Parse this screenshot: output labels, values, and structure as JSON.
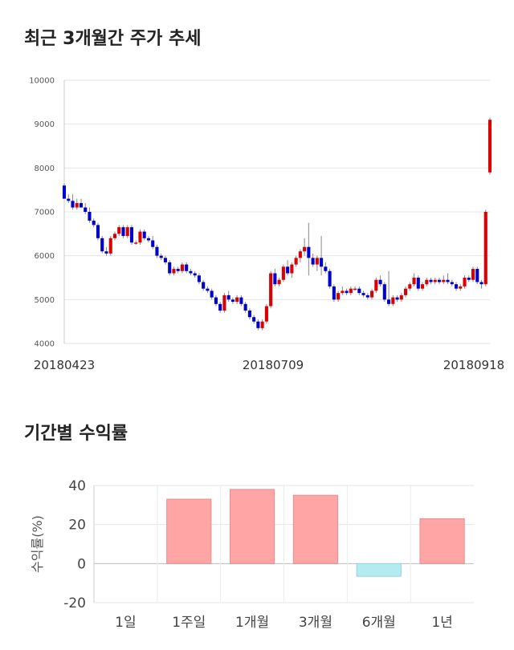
{
  "titles": {
    "price": "최근 3개월간 주가 추세",
    "returns": "기간별 수익률"
  },
  "chart_data": [
    {
      "type": "candlestick",
      "y_ticks": [
        4000,
        5000,
        6000,
        7000,
        8000,
        9000,
        10000
      ],
      "ylim": [
        4000,
        10000
      ],
      "x_labels": [
        "20180423",
        "20180709",
        "20180918"
      ],
      "grid": true,
      "colors": {
        "up": "#dd0000",
        "down": "#0000cc"
      },
      "candles": [
        [
          7600,
          7650,
          7300,
          7300
        ],
        [
          7300,
          7400,
          7200,
          7250
        ],
        [
          7250,
          7400,
          7050,
          7100
        ],
        [
          7100,
          7300,
          7050,
          7200
        ],
        [
          7200,
          7300,
          7100,
          7100
        ],
        [
          7100,
          7200,
          6950,
          7000
        ],
        [
          7000,
          7100,
          6750,
          6800
        ],
        [
          6800,
          6850,
          6650,
          6700
        ],
        [
          6700,
          6750,
          6350,
          6400
        ],
        [
          6400,
          6450,
          6050,
          6100
        ],
        [
          6100,
          6200,
          6000,
          6050
        ],
        [
          6050,
          6450,
          6000,
          6400
        ],
        [
          6400,
          6550,
          6350,
          6500
        ],
        [
          6500,
          6700,
          6450,
          6650
        ],
        [
          6650,
          6700,
          6400,
          6450
        ],
        [
          6450,
          6700,
          6400,
          6650
        ],
        [
          6650,
          6700,
          6250,
          6300
        ],
        [
          6300,
          6350,
          6250,
          6300
        ],
        [
          6300,
          6600,
          6250,
          6550
        ],
        [
          6550,
          6600,
          6350,
          6400
        ],
        [
          6400,
          6450,
          6300,
          6350
        ],
        [
          6350,
          6450,
          6150,
          6200
        ],
        [
          6200,
          6250,
          5950,
          6000
        ],
        [
          6000,
          6050,
          5900,
          5950
        ],
        [
          5950,
          6000,
          5800,
          5850
        ],
        [
          5850,
          5900,
          5550,
          5600
        ],
        [
          5600,
          5750,
          5550,
          5700
        ],
        [
          5700,
          5750,
          5600,
          5650
        ],
        [
          5650,
          5850,
          5600,
          5800
        ],
        [
          5800,
          5850,
          5600,
          5650
        ],
        [
          5650,
          5700,
          5550,
          5600
        ],
        [
          5600,
          5650,
          5500,
          5550
        ],
        [
          5550,
          5600,
          5350,
          5400
        ],
        [
          5400,
          5450,
          5200,
          5250
        ],
        [
          5250,
          5300,
          5150,
          5200
        ],
        [
          5200,
          5250,
          5000,
          5050
        ],
        [
          5050,
          5100,
          4850,
          4900
        ],
        [
          4900,
          4950,
          4700,
          4750
        ],
        [
          4750,
          5150,
          4700,
          5100
        ],
        [
          5100,
          5200,
          4950,
          5000
        ],
        [
          5000,
          5050,
          4900,
          4950
        ],
        [
          4950,
          5100,
          4900,
          5050
        ],
        [
          5050,
          5100,
          4850,
          4900
        ],
        [
          4900,
          4950,
          4700,
          4750
        ],
        [
          4750,
          4800,
          4550,
          4600
        ],
        [
          4600,
          4650,
          4450,
          4500
        ],
        [
          4500,
          4550,
          4300,
          4350
        ],
        [
          4350,
          4550,
          4300,
          4500
        ],
        [
          4500,
          4900,
          4450,
          4850
        ],
        [
          4850,
          5650,
          4800,
          5600
        ],
        [
          5600,
          5700,
          5300,
          5350
        ],
        [
          5350,
          5500,
          5300,
          5450
        ],
        [
          5450,
          5800,
          5400,
          5750
        ],
        [
          5750,
          5900,
          5550,
          5600
        ],
        [
          5600,
          5850,
          5500,
          5800
        ],
        [
          5800,
          6000,
          5750,
          5950
        ],
        [
          5950,
          6150,
          5850,
          6100
        ],
        [
          6100,
          6400,
          6000,
          6200
        ],
        [
          6200,
          6750,
          5550,
          5950
        ],
        [
          5950,
          6050,
          5750,
          5800
        ],
        [
          5800,
          6000,
          5650,
          5950
        ],
        [
          5950,
          6450,
          5550,
          5750
        ],
        [
          5750,
          5850,
          5600,
          5650
        ],
        [
          5650,
          5700,
          5250,
          5300
        ],
        [
          5300,
          5350,
          4950,
          5000
        ],
        [
          5000,
          5200,
          4950,
          5150
        ],
        [
          5150,
          5300,
          5100,
          5200
        ],
        [
          5200,
          5250,
          5100,
          5150
        ],
        [
          5150,
          5300,
          5100,
          5250
        ],
        [
          5250,
          5300,
          5200,
          5250
        ],
        [
          5250,
          5300,
          5100,
          5150
        ],
        [
          5150,
          5200,
          5050,
          5100
        ],
        [
          5100,
          5150,
          5000,
          5050
        ],
        [
          5050,
          5250,
          5000,
          5200
        ],
        [
          5200,
          5500,
          5150,
          5450
        ],
        [
          5450,
          5550,
          5300,
          5350
        ],
        [
          5350,
          5400,
          4950,
          5000
        ],
        [
          5000,
          5650,
          4850,
          4900
        ],
        [
          4900,
          5100,
          4850,
          5050
        ],
        [
          5050,
          5100,
          4950,
          5000
        ],
        [
          5000,
          5150,
          4950,
          5100
        ],
        [
          5100,
          5300,
          5050,
          5250
        ],
        [
          5250,
          5400,
          5200,
          5350
        ],
        [
          5350,
          5600,
          5300,
          5500
        ],
        [
          5500,
          5550,
          5200,
          5250
        ],
        [
          5250,
          5400,
          5200,
          5350
        ],
        [
          5350,
          5500,
          5300,
          5450
        ],
        [
          5450,
          5500,
          5350,
          5400
        ],
        [
          5400,
          5500,
          5350,
          5450
        ],
        [
          5450,
          5500,
          5350,
          5400
        ],
        [
          5400,
          5550,
          5350,
          5450
        ],
        [
          5450,
          5600,
          5350,
          5400
        ],
        [
          5400,
          5450,
          5300,
          5350
        ],
        [
          5350,
          5400,
          5200,
          5250
        ],
        [
          5250,
          5350,
          5200,
          5300
        ],
        [
          5300,
          5550,
          5250,
          5500
        ],
        [
          5500,
          5550,
          5400,
          5450
        ],
        [
          5450,
          5750,
          5400,
          5700
        ],
        [
          5700,
          5750,
          5350,
          5400
        ],
        [
          5400,
          5450,
          5250,
          5350
        ],
        [
          5350,
          7050,
          5300,
          7000
        ],
        [
          7900,
          9150,
          7850,
          9100
        ]
      ]
    },
    {
      "type": "bar",
      "categories": [
        "1일",
        "1주일",
        "1개월",
        "3개월",
        "6개월",
        "1년"
      ],
      "values": [
        0,
        33,
        38,
        35,
        -6.5,
        23
      ],
      "ylabel": "수익률(%)",
      "y_ticks": [
        40,
        20,
        0,
        -20
      ],
      "ylim": [
        -20,
        40
      ],
      "colors": {
        "positive": "#ffa5a5",
        "positive_edge": "#e58f8f",
        "negative": "#b2ecf0",
        "negative_edge": "#8fd4da"
      },
      "grid": true
    }
  ]
}
